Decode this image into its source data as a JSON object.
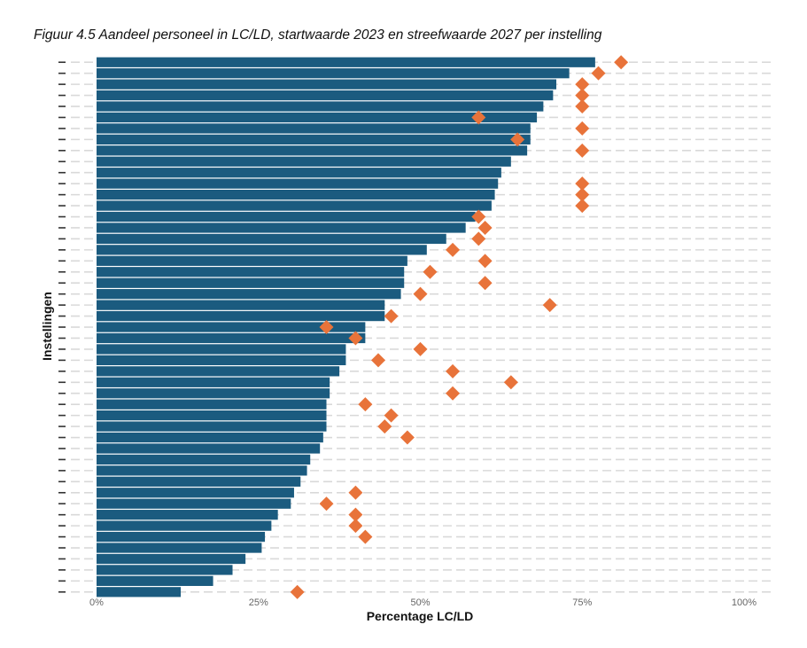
{
  "figure_title": "Figuur 4.5 Aandeel personeel in LC/LD, startwaarde 2023 en streefwaarde 2027 per instelling",
  "colors": {
    "bar": "#1b5b7f",
    "marker": "#e8733a",
    "grid": "#d9d9d9"
  },
  "chart_data": {
    "type": "bar",
    "orientation": "horizontal",
    "xlabel": "Percentage LC/LD",
    "ylabel": "Instellingen",
    "xlim": [
      0,
      100
    ],
    "x_ticks": [
      "0%",
      "25%",
      "50%",
      "75%",
      "100%"
    ],
    "x_tick_values": [
      0,
      25,
      50,
      75,
      100
    ],
    "grid": true,
    "series": [
      {
        "values": [
          77,
          73,
          71,
          70.5,
          69,
          68,
          67,
          67,
          66.5,
          64,
          62.5,
          62,
          61.5,
          61,
          58.5,
          57,
          54,
          51,
          48,
          47.5,
          47.5,
          47,
          44.5,
          44.5,
          41.5,
          41.5,
          38.5,
          38.5,
          37.5,
          36,
          36,
          35.5,
          35.5,
          35.5,
          35,
          34.5,
          33,
          32.5,
          31.5,
          30.5,
          30,
          28,
          27,
          26,
          25.5,
          23,
          21,
          18,
          13
        ]
      },
      {
        "values": [
          81,
          77.5,
          75,
          75,
          75,
          59,
          75,
          65,
          75,
          null,
          null,
          75,
          75,
          75,
          59,
          60,
          59,
          55,
          60,
          51.5,
          60,
          50,
          70,
          45.5,
          35.5,
          40,
          50,
          43.5,
          55,
          64,
          55,
          41.5,
          45.5,
          44.5,
          48,
          null,
          null,
          null,
          null,
          40,
          35.5,
          40,
          40,
          41.5,
          null,
          null,
          null,
          null,
          31
        ]
      }
    ]
  }
}
